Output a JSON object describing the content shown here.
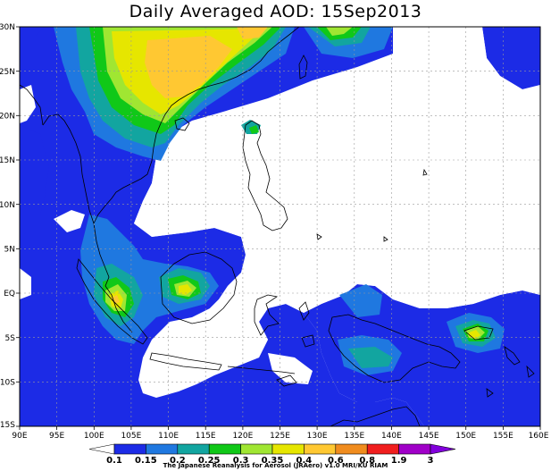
{
  "title": "Daily Averaged AOD: 15Sep2013",
  "lon_labels": [
    "90E",
    "95E",
    "100E",
    "105E",
    "110E",
    "115E",
    "120E",
    "125E",
    "130E",
    "135E",
    "140E",
    "145E",
    "150E",
    "155E",
    "160E"
  ],
  "lat_labels": [
    "30N",
    "25N",
    "20N",
    "15N",
    "10N",
    "5N",
    "EQ",
    "5S",
    "10S",
    "15S"
  ],
  "colorbar": {
    "levels": [
      "0.1",
      "0.15",
      "0.2",
      "0.25",
      "0.3",
      "0.35",
      "0.4",
      "0.6",
      "0.8",
      "1.9",
      "3"
    ],
    "colors": [
      "#ffffff",
      "#1c2be6",
      "#1f78e0",
      "#12a5a0",
      "#10c818",
      "#a0e632",
      "#e6e600",
      "#ffc832",
      "#f08c1e",
      "#f01e1e",
      "#a000c8",
      "#8200dc"
    ]
  },
  "credit": "The Japanese Reanalysis for Aerosol (JRAero) v1.0 MRI/KU RIAM",
  "map": {
    "lon_range": [
      90,
      160
    ],
    "lat_range": [
      -15,
      30
    ],
    "field": "Aerosol Optical Depth"
  }
}
